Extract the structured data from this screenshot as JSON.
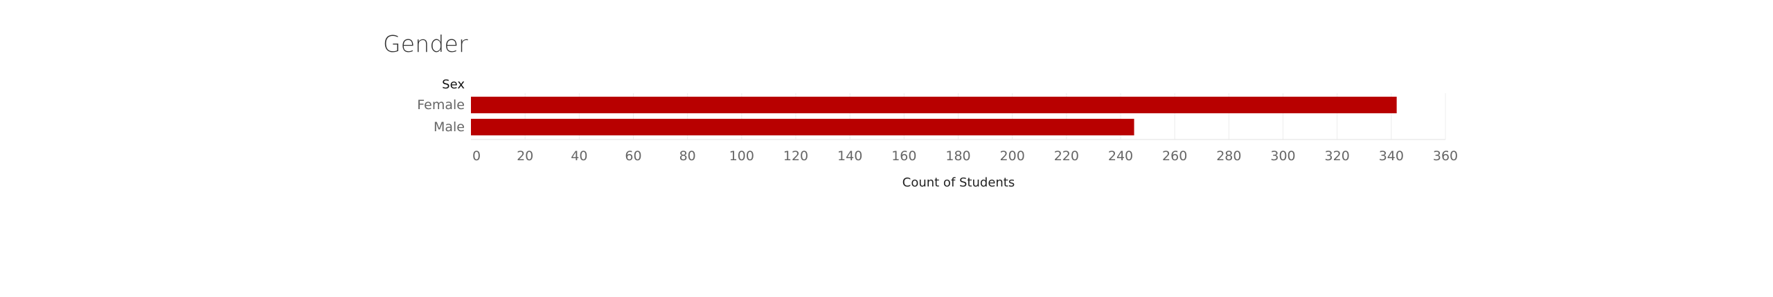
{
  "title": "Gender",
  "chart_data": {
    "type": "bar",
    "orientation": "horizontal",
    "title": "Gender",
    "category_header": "Sex",
    "categories": [
      "Female",
      "Male"
    ],
    "values": [
      342,
      245
    ],
    "xlabel": "Count of Students",
    "ylabel": "Sex",
    "xlim": [
      0,
      360
    ],
    "xticks": [
      0,
      20,
      40,
      60,
      80,
      100,
      120,
      140,
      160,
      180,
      200,
      220,
      240,
      260,
      280,
      300,
      320,
      340,
      360
    ],
    "grid": true,
    "bar_color": "#b80000"
  }
}
